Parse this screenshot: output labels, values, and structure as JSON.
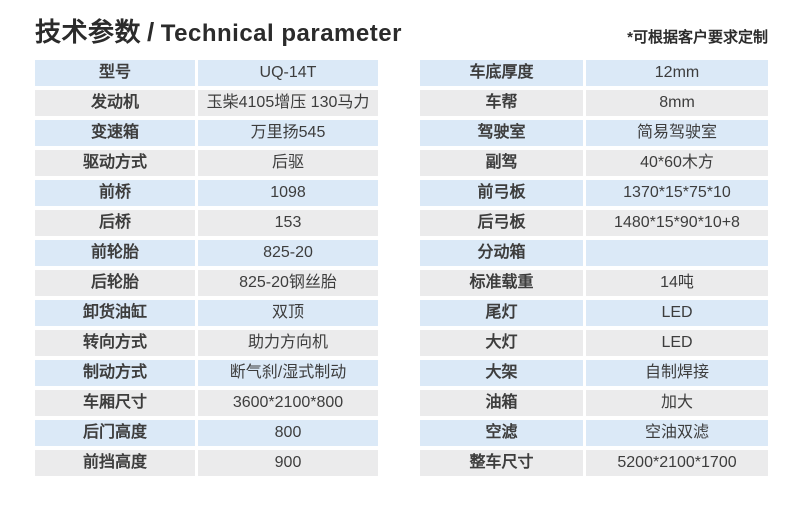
{
  "header": {
    "title_cn": "技术参数",
    "title_divider": "/",
    "title_en": "Technical parameter",
    "note": "*可根据客户要求定制"
  },
  "colors": {
    "row_blue": "#dbe9f7",
    "row_gray": "#ebebec",
    "cell_text": "#3d3d3d",
    "title_text": "#2b2b2b"
  },
  "tables": {
    "left": {
      "rows": [
        {
          "label": "型号",
          "value": "UQ-14T"
        },
        {
          "label": "发动机",
          "value": "玉柴4105增压 130马力"
        },
        {
          "label": "变速箱",
          "value": "万里扬545"
        },
        {
          "label": "驱动方式",
          "value": "后驱"
        },
        {
          "label": "前桥",
          "value": "1098"
        },
        {
          "label": "后桥",
          "value": "153"
        },
        {
          "label": "前轮胎",
          "value": "825-20"
        },
        {
          "label": "后轮胎",
          "value": "825-20钢丝胎"
        },
        {
          "label": "卸货油缸",
          "value": "双顶"
        },
        {
          "label": "转向方式",
          "value": "助力方向机"
        },
        {
          "label": "制动方式",
          "value": "断气刹/湿式制动"
        },
        {
          "label": "车厢尺寸",
          "value": "3600*2100*800"
        },
        {
          "label": "后门高度",
          "value": "800"
        },
        {
          "label": "前挡高度",
          "value": "900"
        }
      ]
    },
    "right": {
      "rows": [
        {
          "label": "车底厚度",
          "value": "12mm"
        },
        {
          "label": "车帮",
          "value": "8mm"
        },
        {
          "label": "驾驶室",
          "value": "简易驾驶室"
        },
        {
          "label": "副驾",
          "value": "40*60木方"
        },
        {
          "label": "前弓板",
          "value": "1370*15*75*10"
        },
        {
          "label": "后弓板",
          "value": "1480*15*90*10+8"
        },
        {
          "label": "分动箱",
          "value": ""
        },
        {
          "label": "标准载重",
          "value": "14吨"
        },
        {
          "label": "尾灯",
          "value": "LED"
        },
        {
          "label": "大灯",
          "value": "LED"
        },
        {
          "label": "大架",
          "value": "自制焊接"
        },
        {
          "label": "油箱",
          "value": "加大"
        },
        {
          "label": "空滤",
          "value": "空油双滤"
        },
        {
          "label": "整车尺寸",
          "value": "5200*2100*1700"
        }
      ]
    }
  }
}
